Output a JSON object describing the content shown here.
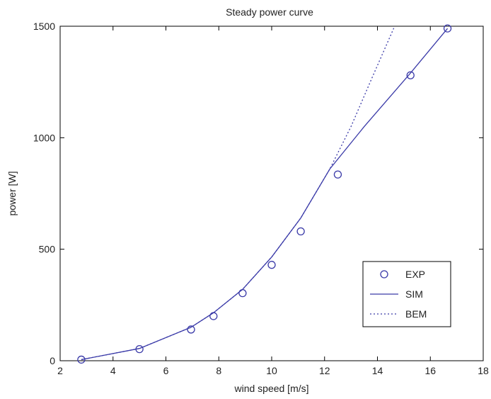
{
  "chart_data": {
    "type": "line",
    "title": "Steady power curve",
    "xlabel": "wind speed [m/s]",
    "ylabel": "power [W]",
    "xlim": [
      2,
      18
    ],
    "ylim": [
      0,
      1500
    ],
    "xticks": [
      2,
      4,
      6,
      8,
      10,
      12,
      14,
      16,
      18
    ],
    "yticks": [
      0,
      500,
      1000,
      1500
    ],
    "grid": false,
    "legend_position": "bottom-right",
    "series": [
      {
        "name": "EXP",
        "style": "markers",
        "marker": "circle",
        "color": "#3a3aa8",
        "x": [
          2.8,
          5.0,
          6.95,
          7.8,
          8.9,
          10.0,
          11.1,
          12.5,
          15.25,
          16.65
        ],
        "y": [
          5,
          52,
          140,
          200,
          303,
          430,
          580,
          835,
          1280,
          1490
        ]
      },
      {
        "name": "SIM",
        "style": "solid",
        "color": "#3a3aa8",
        "x": [
          2.8,
          5.0,
          6.95,
          7.8,
          8.9,
          10.0,
          11.1,
          12.2,
          13.5,
          15.25,
          16.65
        ],
        "y": [
          5,
          55,
          150,
          215,
          320,
          465,
          640,
          860,
          1050,
          1290,
          1490
        ]
      },
      {
        "name": "BEM",
        "style": "dotted",
        "color": "#3a3aa8",
        "x": [
          2.8,
          5.0,
          6.95,
          7.8,
          8.9,
          10.0,
          11.1,
          12.2,
          13.0,
          13.8,
          14.65
        ],
        "y": [
          5,
          55,
          150,
          215,
          320,
          465,
          640,
          860,
          1050,
          1270,
          1500
        ]
      }
    ]
  }
}
